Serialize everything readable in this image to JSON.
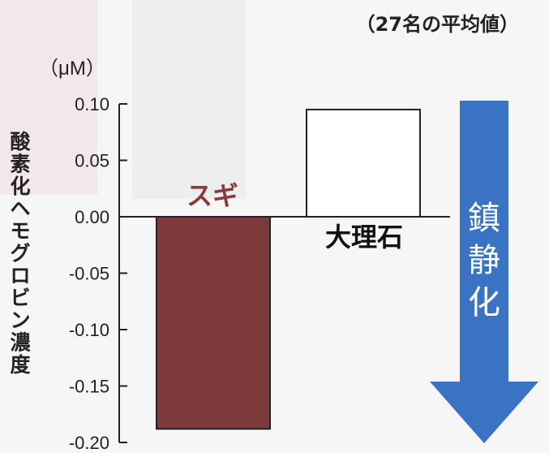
{
  "chart_data": {
    "type": "bar",
    "note": "（27名の平均値）",
    "unit": "（μM）",
    "ylabel": "酸素化ヘモグロビン濃度",
    "categories": [
      "スギ",
      "大理石"
    ],
    "values": [
      -0.188,
      0.095
    ],
    "ylim": [
      -0.2,
      0.1
    ],
    "yticks": [
      "0.10",
      "0.05",
      "0.00",
      "-0.05",
      "-0.10",
      "-0.15",
      "-0.20"
    ],
    "bar_colors": [
      "#7d3a3a",
      "#ffffff"
    ],
    "label_colors": [
      "#8b3a3a",
      "#111111"
    ],
    "grid": false
  },
  "arrow": {
    "label": "鎮静化",
    "color": "#3a73c4"
  }
}
